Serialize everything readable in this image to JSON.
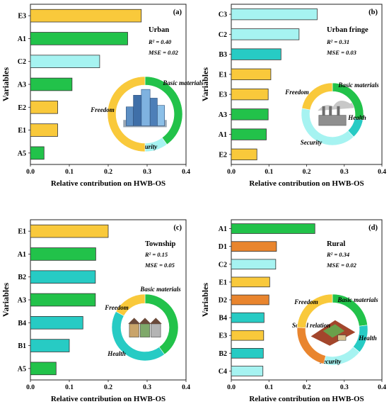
{
  "colors": {
    "E": "#f9c93b",
    "A": "#22c24a",
    "C": "#a6f3f1",
    "B": "#27cbc4",
    "D": "#e9852e",
    "stroke": "#333333"
  },
  "chart_data": [
    {
      "type": "bar",
      "panel": "(a)",
      "site": "Urban",
      "r2": "R² = 0.40",
      "mse": "MSE = 0.02",
      "categories": [
        "E3",
        "A1",
        "C2",
        "A3",
        "E2",
        "E1",
        "A5"
      ],
      "values": [
        0.285,
        0.25,
        0.178,
        0.107,
        0.07,
        0.07,
        0.035
      ],
      "xlabel": "Relative contribution on HWB-OS",
      "ylabel": "Variables",
      "xlim": [
        0,
        0.4
      ],
      "xticks": [
        "0.0",
        "0.1",
        "0.2",
        "0.3",
        "0.4"
      ],
      "donut": [
        {
          "name": "Basic materials",
          "value": 0.4,
          "group": "A"
        },
        {
          "name": "Security",
          "value": 0.1,
          "group": "C"
        },
        {
          "name": "Freedom",
          "value": 0.5,
          "group": "E"
        }
      ]
    },
    {
      "type": "bar",
      "panel": "(b)",
      "site": "Urban fringe",
      "r2": "R² = 0.31",
      "mse": "MSE = 0.03",
      "categories": [
        "C3",
        "C2",
        "B3",
        "E1",
        "E3",
        "A3",
        "A1",
        "E2"
      ],
      "values": [
        0.228,
        0.18,
        0.132,
        0.105,
        0.098,
        0.098,
        0.093,
        0.068
      ],
      "xlabel": "Relative contribution on HWB-OS",
      "ylabel": "Variables",
      "xlim": [
        0,
        0.4
      ],
      "xticks": [
        "0.0",
        "0.1",
        "0.2",
        "0.3",
        "0.4"
      ],
      "donut": [
        {
          "name": "Basic materials",
          "value": 0.28,
          "group": "A"
        },
        {
          "name": "Health",
          "value": 0.1,
          "group": "B"
        },
        {
          "name": "Security",
          "value": 0.4,
          "group": "C"
        },
        {
          "name": "Freedom",
          "value": 0.22,
          "group": "E"
        }
      ]
    },
    {
      "type": "bar",
      "panel": "(c)",
      "site": "Township",
      "r2": "R² = 0.15",
      "mse": "MSE = 0.05",
      "categories": [
        "E1",
        "A1",
        "B2",
        "A3",
        "B4",
        "B1",
        "A5"
      ],
      "values": [
        0.2,
        0.168,
        0.167,
        0.167,
        0.135,
        0.1,
        0.066
      ],
      "xlabel": "Relative contribution on HWB-OS",
      "ylabel": "Variables",
      "xlim": [
        0,
        0.4
      ],
      "xticks": [
        "0.0",
        "0.1",
        "0.2",
        "0.3",
        "0.4"
      ],
      "donut": [
        {
          "name": "Basic materials",
          "value": 0.4,
          "group": "A"
        },
        {
          "name": "Health",
          "value": 0.43,
          "group": "B"
        },
        {
          "name": "Freedom",
          "value": 0.17,
          "group": "E"
        }
      ]
    },
    {
      "type": "bar",
      "panel": "(d)",
      "site": "Rural",
      "r2": "R² = 0.34",
      "mse": "MSE = 0.02",
      "categories": [
        "A1",
        "D1",
        "C2",
        "E1",
        "D2",
        "B4",
        "E3",
        "B2",
        "C4"
      ],
      "values": [
        0.222,
        0.12,
        0.118,
        0.102,
        0.1,
        0.087,
        0.086,
        0.085,
        0.084
      ],
      "xlabel": "Relative contribution on HWB-OS",
      "ylabel": "Variables",
      "xlim": [
        0,
        0.4
      ],
      "xticks": [
        "0.0",
        "0.1",
        "0.2",
        "0.3",
        "0.4"
      ],
      "donut": [
        {
          "name": "Basic materials",
          "value": 0.23,
          "group": "A"
        },
        {
          "name": "Health",
          "value": 0.13,
          "group": "B"
        },
        {
          "name": "Security",
          "value": 0.18,
          "group": "C"
        },
        {
          "name": "Social relation",
          "value": 0.22,
          "group": "D"
        },
        {
          "name": "Freedom",
          "value": 0.24,
          "group": "E"
        }
      ]
    }
  ]
}
